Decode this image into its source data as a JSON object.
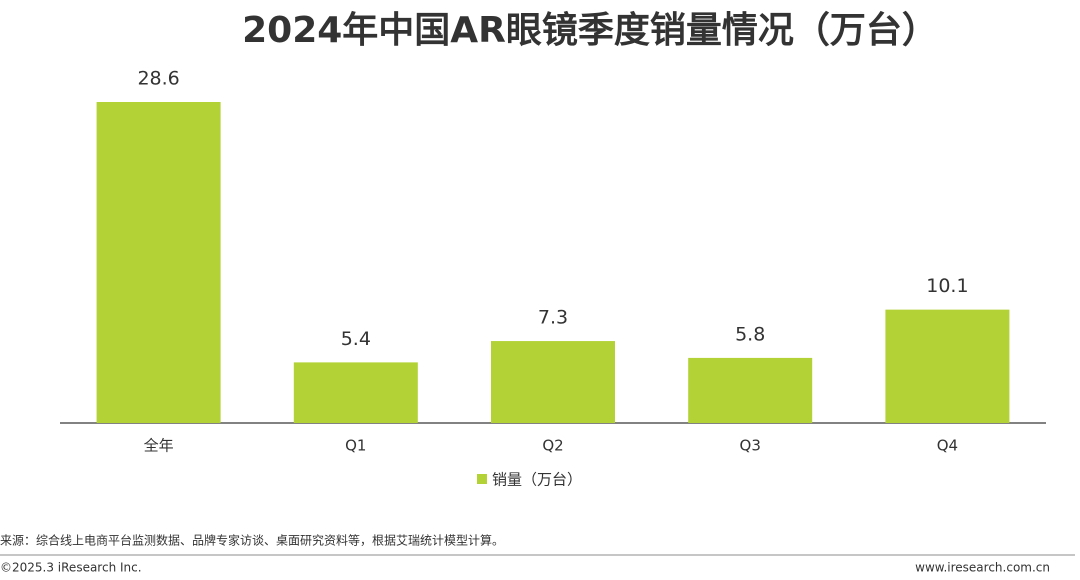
{
  "chart_data": {
    "type": "bar",
    "title": "2024年中国AR眼镜季度销量情况（万台）",
    "categories": [
      "全年",
      "Q1",
      "Q2",
      "Q3",
      "Q4"
    ],
    "series": [
      {
        "name": "销量（万台）",
        "color": "#b2d235",
        "values": [
          28.6,
          5.4,
          7.3,
          5.8,
          10.1
        ]
      }
    ],
    "legend": "bottom"
  },
  "source": "来源：综合线上电商平台监测数据、品牌专家访谈、桌面研究资料等，根据艾瑞统计模型计算。",
  "copyright": "©2025.3 iResearch Inc.",
  "website": "www.iresearch.com.cn"
}
